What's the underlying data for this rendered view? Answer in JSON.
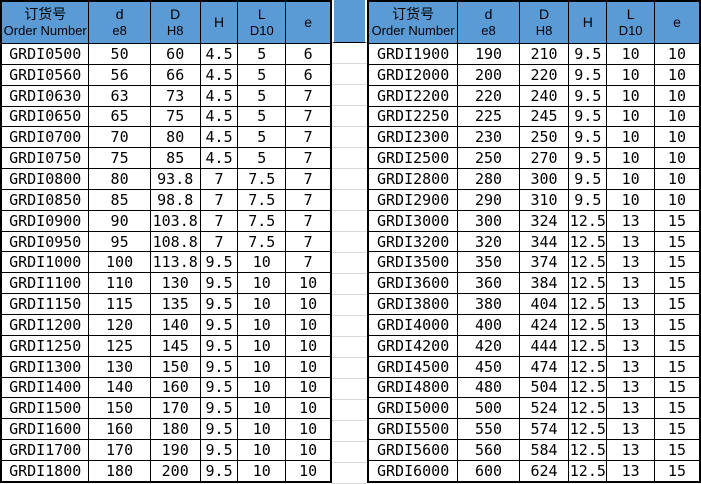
{
  "colors": {
    "header_bg": "#5B9BD5",
    "border": "#000000",
    "gridline": "#D9D9D9",
    "background": "#FFFFFF",
    "text": "#000000"
  },
  "table_header": {
    "columns": [
      {
        "top": "订货号",
        "sub": "Order Number"
      },
      {
        "top": "d",
        "sub": "e8"
      },
      {
        "top": "D",
        "sub": "H8"
      },
      {
        "top": "H",
        "sub": ""
      },
      {
        "top": "L",
        "sub": "D10"
      },
      {
        "top": "e",
        "sub": ""
      }
    ]
  },
  "tables": [
    {
      "id": "left",
      "rows": [
        [
          "GRDI0500",
          "50",
          "60",
          "4.5",
          "5",
          "6"
        ],
        [
          "GRDI0560",
          "56",
          "66",
          "4.5",
          "5",
          "6"
        ],
        [
          "GRDI0630",
          "63",
          "73",
          "4.5",
          "5",
          "7"
        ],
        [
          "GRDI0650",
          "65",
          "75",
          "4.5",
          "5",
          "7"
        ],
        [
          "GRDI0700",
          "70",
          "80",
          "4.5",
          "5",
          "7"
        ],
        [
          "GRDI0750",
          "75",
          "85",
          "4.5",
          "5",
          "7"
        ],
        [
          "GRDI0800",
          "80",
          "93.8",
          "7",
          "7.5",
          "7"
        ],
        [
          "GRDI0850",
          "85",
          "98.8",
          "7",
          "7.5",
          "7"
        ],
        [
          "GRDI0900",
          "90",
          "103.8",
          "7",
          "7.5",
          "7"
        ],
        [
          "GRDI0950",
          "95",
          "108.8",
          "7",
          "7.5",
          "7"
        ],
        [
          "GRDI1000",
          "100",
          "113.8",
          "9.5",
          "10",
          "7"
        ],
        [
          "GRDI1100",
          "110",
          "130",
          "9.5",
          "10",
          "10"
        ],
        [
          "GRDI1150",
          "115",
          "135",
          "9.5",
          "10",
          "10"
        ],
        [
          "GRDI1200",
          "120",
          "140",
          "9.5",
          "10",
          "10"
        ],
        [
          "GRDI1250",
          "125",
          "145",
          "9.5",
          "10",
          "10"
        ],
        [
          "GRDI1300",
          "130",
          "150",
          "9.5",
          "10",
          "10"
        ],
        [
          "GRDI1400",
          "140",
          "160",
          "9.5",
          "10",
          "10"
        ],
        [
          "GRDI1500",
          "150",
          "170",
          "9.5",
          "10",
          "10"
        ],
        [
          "GRDI1600",
          "160",
          "180",
          "9.5",
          "10",
          "10"
        ],
        [
          "GRDI1700",
          "170",
          "190",
          "9.5",
          "10",
          "10"
        ],
        [
          "GRDI1800",
          "180",
          "200",
          "9.5",
          "10",
          "10"
        ]
      ]
    },
    {
      "id": "right",
      "rows": [
        [
          "GRDI1900",
          "190",
          "210",
          "9.5",
          "10",
          "10"
        ],
        [
          "GRDI2000",
          "200",
          "220",
          "9.5",
          "10",
          "10"
        ],
        [
          "GRDI2200",
          "220",
          "240",
          "9.5",
          "10",
          "10"
        ],
        [
          "GRDI2250",
          "225",
          "245",
          "9.5",
          "10",
          "10"
        ],
        [
          "GRDI2300",
          "230",
          "250",
          "9.5",
          "10",
          "10"
        ],
        [
          "GRDI2500",
          "250",
          "270",
          "9.5",
          "10",
          "10"
        ],
        [
          "GRDI2800",
          "280",
          "300",
          "9.5",
          "10",
          "10"
        ],
        [
          "GRDI2900",
          "290",
          "310",
          "9.5",
          "10",
          "10"
        ],
        [
          "GRDI3000",
          "300",
          "324",
          "12.5",
          "13",
          "15"
        ],
        [
          "GRDI3200",
          "320",
          "344",
          "12.5",
          "13",
          "15"
        ],
        [
          "GRDI3500",
          "350",
          "374",
          "12.5",
          "13",
          "15"
        ],
        [
          "GRDI3600",
          "360",
          "384",
          "12.5",
          "13",
          "15"
        ],
        [
          "GRDI3800",
          "380",
          "404",
          "12.5",
          "13",
          "15"
        ],
        [
          "GRDI4000",
          "400",
          "424",
          "12.5",
          "13",
          "15"
        ],
        [
          "GRDI4200",
          "420",
          "444",
          "12.5",
          "13",
          "15"
        ],
        [
          "GRDI4500",
          "450",
          "474",
          "12.5",
          "13",
          "15"
        ],
        [
          "GRDI4800",
          "480",
          "504",
          "12.5",
          "13",
          "15"
        ],
        [
          "GRDI5000",
          "500",
          "524",
          "12.5",
          "13",
          "15"
        ],
        [
          "GRDI5500",
          "550",
          "574",
          "12.5",
          "13",
          "15"
        ],
        [
          "GRDI5600",
          "560",
          "584",
          "12.5",
          "13",
          "15"
        ],
        [
          "GRDI6000",
          "600",
          "624",
          "12.5",
          "13",
          "15"
        ]
      ]
    }
  ]
}
